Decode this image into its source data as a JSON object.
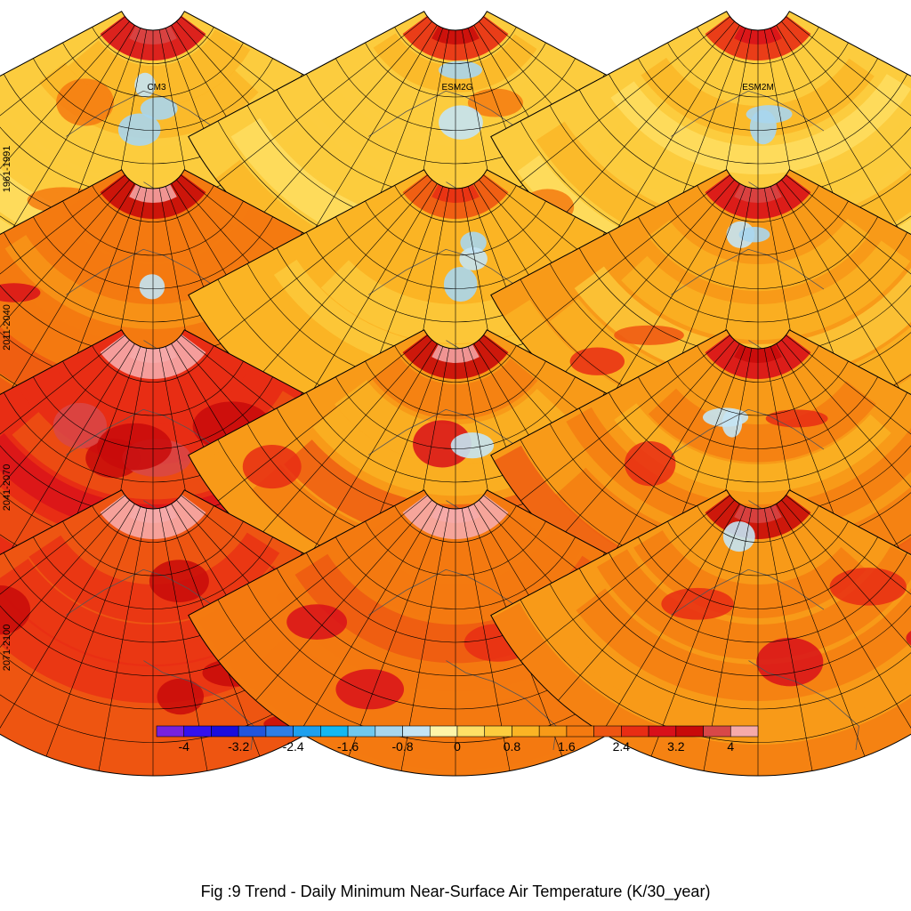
{
  "caption": "Fig :9  Trend  - Daily Minimum Near-Surface Air Temperature (K/30_year)",
  "chart_data": {
    "type": "heatmap",
    "projection": "polar sector (Lambert conformal), Europe / North Atlantic / Africa",
    "columns": [
      "CM3",
      "ESM2G",
      "ESM2M"
    ],
    "rows": [
      "1961-1991",
      "2011-2040",
      "2041-2070",
      "2071-2100"
    ],
    "units": "K/30_year",
    "colorbar": {
      "ticks": [
        "-4",
        "-3.2",
        "-2.4",
        "-1.6",
        "-0.8",
        "0",
        "0.8",
        "1.6",
        "2.4",
        "3.2",
        "4"
      ],
      "colors": [
        "#7722dd",
        "#3311ee",
        "#1a0ddd",
        "#2255dd",
        "#2f7ee8",
        "#1ea0ee",
        "#14b8f0",
        "#70c8ee",
        "#a8d6ee",
        "#c4e4f4",
        "#fff5a8",
        "#ffe066",
        "#fccc3e",
        "#fbb424",
        "#f89a18",
        "#f47a10",
        "#ee5512",
        "#e82d14",
        "#d8101a",
        "#c80a0a",
        "#d84848",
        "#f6aaaa"
      ],
      "range": [
        -4.4,
        4.4
      ]
    },
    "panels": [
      {
        "model": "CM3",
        "period": "1961-1991",
        "mean_level": 0.7,
        "arctic_level": 3.0,
        "cool_patches": 3,
        "warm_patches": 2
      },
      {
        "model": "ESM2G",
        "period": "1961-1991",
        "mean_level": 0.8,
        "arctic_level": 2.6,
        "cool_patches": 2,
        "warm_patches": 1
      },
      {
        "model": "ESM2M",
        "period": "1961-1991",
        "mean_level": 0.6,
        "arctic_level": 2.4,
        "cool_patches": 2,
        "warm_patches": 2
      },
      {
        "model": "CM3",
        "period": "2011-2040",
        "mean_level": 1.9,
        "arctic_level": 3.4,
        "cool_patches": 1,
        "warm_patches": 4
      },
      {
        "model": "ESM2G",
        "period": "2011-2040",
        "mean_level": 1.0,
        "arctic_level": 2.0,
        "cool_patches": 3,
        "warm_patches": 1
      },
      {
        "model": "ESM2M",
        "period": "2011-2040",
        "mean_level": 1.2,
        "arctic_level": 3.0,
        "cool_patches": 2,
        "warm_patches": 2
      },
      {
        "model": "CM3",
        "period": "2041-2070",
        "mean_level": 2.4,
        "arctic_level": 4.2,
        "cool_patches": 0,
        "warm_patches": 6
      },
      {
        "model": "ESM2G",
        "period": "2041-2070",
        "mean_level": 1.6,
        "arctic_level": 3.4,
        "cool_patches": 1,
        "warm_patches": 4
      },
      {
        "model": "ESM2M",
        "period": "2041-2070",
        "mean_level": 1.6,
        "arctic_level": 2.8,
        "cool_patches": 2,
        "warm_patches": 4
      },
      {
        "model": "CM3",
        "period": "2071-2100",
        "mean_level": 2.2,
        "arctic_level": 4.2,
        "cool_patches": 0,
        "warm_patches": 5
      },
      {
        "model": "ESM2G",
        "period": "2071-2100",
        "mean_level": 1.8,
        "arctic_level": 4.0,
        "cool_patches": 0,
        "warm_patches": 5
      },
      {
        "model": "ESM2M",
        "period": "2071-2100",
        "mean_level": 1.6,
        "arctic_level": 3.2,
        "cool_patches": 1,
        "warm_patches": 4
      }
    ]
  }
}
